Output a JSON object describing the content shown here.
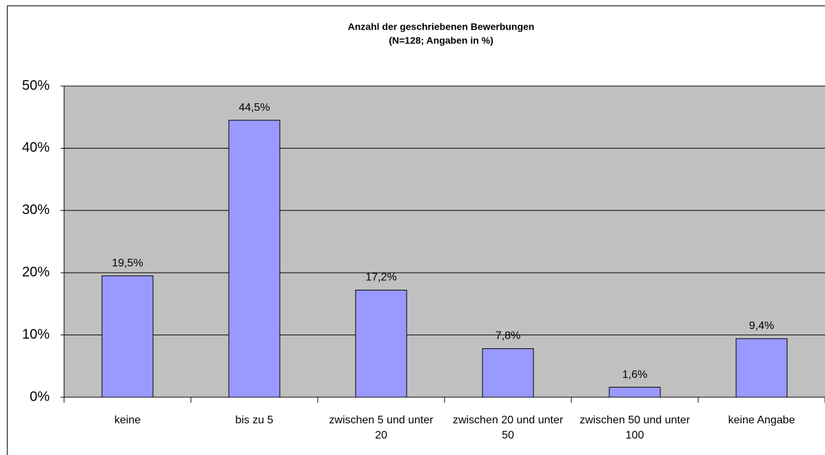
{
  "chart_data": {
    "type": "bar",
    "title": "Anzahl der geschriebenen Bewerbungen",
    "subtitle": "(N=128; Angaben in %)",
    "categories": [
      "keine",
      "bis zu 5",
      "zwischen 5 und unter 20",
      "zwischen 20 und unter 50",
      "zwischen 50 und unter 100",
      "keine Angabe"
    ],
    "values": [
      19.5,
      44.5,
      17.2,
      7.8,
      1.6,
      9.4
    ],
    "value_labels": [
      "19,5%",
      "44,5%",
      "17,2%",
      "7,8%",
      "1,6%",
      "9,4%"
    ],
    "color": "#9999ff",
    "ylim": [
      0,
      50
    ],
    "yticks": [
      {
        "value": 0,
        "label": "0%"
      },
      {
        "value": 10,
        "label": "10%"
      },
      {
        "value": 20,
        "label": "20%"
      },
      {
        "value": 30,
        "label": "30%"
      },
      {
        "value": 40,
        "label": "40%"
      },
      {
        "value": 50,
        "label": "50%"
      }
    ],
    "grid": true
  }
}
